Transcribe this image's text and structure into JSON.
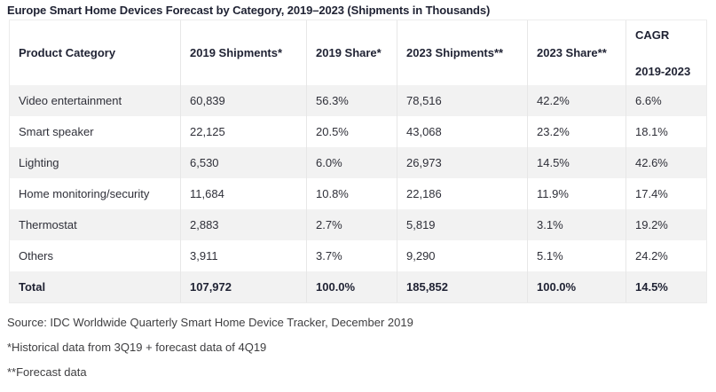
{
  "title": "Europe Smart Home Devices Forecast by Category, 2019–2023 (Shipments in Thousands)",
  "table": {
    "headers": {
      "product_category": "Product Category",
      "shipments_2019": "2019 Shipments*",
      "share_2019": "2019 Share*",
      "shipments_2023": "2023 Shipments**",
      "share_2023": "2023 Share**",
      "cagr_line1": "CAGR",
      "cagr_line2": "2019-2023"
    },
    "rows": [
      {
        "category": "Video entertainment",
        "shipments_2019": "60,839",
        "share_2019": "56.3%",
        "shipments_2023": "78,516",
        "share_2023": "42.2%",
        "cagr": "6.6%"
      },
      {
        "category": "Smart speaker",
        "shipments_2019": "22,125",
        "share_2019": "20.5%",
        "shipments_2023": "43,068",
        "share_2023": "23.2%",
        "cagr": "18.1%"
      },
      {
        "category": "Lighting",
        "shipments_2019": "6,530",
        "share_2019": "6.0%",
        "shipments_2023": "26,973",
        "share_2023": "14.5%",
        "cagr": "42.6%"
      },
      {
        "category": "Home monitoring/security",
        "shipments_2019": "11,684",
        "share_2019": "10.8%",
        "shipments_2023": "22,186",
        "share_2023": "11.9%",
        "cagr": "17.4%"
      },
      {
        "category": "Thermostat",
        "shipments_2019": "2,883",
        "share_2019": "2.7%",
        "shipments_2023": "5,819",
        "share_2023": "3.1%",
        "cagr": "19.2%"
      },
      {
        "category": "Others",
        "shipments_2019": "3,911",
        "share_2019": "3.7%",
        "shipments_2023": "9,290",
        "share_2023": "5.1%",
        "cagr": "24.2%"
      }
    ],
    "total": {
      "category": "Total",
      "shipments_2019": "107,972",
      "share_2019": "100.0%",
      "shipments_2023": "185,852",
      "share_2023": "100.0%",
      "cagr": "14.5%"
    }
  },
  "footnotes": [
    "Source: IDC Worldwide Quarterly Smart Home Device Tracker, December 2019",
    "*Historical data from 3Q19 + forecast data of 4Q19",
    "**Forecast data"
  ],
  "colors": {
    "stripe_gray": "#f2f2f2",
    "row_white": "#ffffff",
    "cell_border": "#e7e7e7",
    "heading_text": "#1f2233",
    "body_text": "#2f3039",
    "footnote_text": "#3e3e40"
  },
  "chart_data": {
    "type": "table",
    "title": "Europe Smart Home Devices Forecast by Category, 2019–2023 (Shipments in Thousands)",
    "units": "thousands of shipments",
    "columns": [
      "Product Category",
      "2019 Shipments*",
      "2019 Share*",
      "2023 Shipments**",
      "2023 Share**",
      "CAGR 2019-2023"
    ],
    "rows": [
      {
        "category": "Video entertainment",
        "shipments_2019": 60839,
        "share_2019_pct": 56.3,
        "shipments_2023": 78516,
        "share_2023_pct": 42.2,
        "cagr_pct": 6.6
      },
      {
        "category": "Smart speaker",
        "shipments_2019": 22125,
        "share_2019_pct": 20.5,
        "shipments_2023": 43068,
        "share_2023_pct": 23.2,
        "cagr_pct": 18.1
      },
      {
        "category": "Lighting",
        "shipments_2019": 6530,
        "share_2019_pct": 6.0,
        "shipments_2023": 26973,
        "share_2023_pct": 14.5,
        "cagr_pct": 42.6
      },
      {
        "category": "Home monitoring/security",
        "shipments_2019": 11684,
        "share_2019_pct": 10.8,
        "shipments_2023": 22186,
        "share_2023_pct": 11.9,
        "cagr_pct": 17.4
      },
      {
        "category": "Thermostat",
        "shipments_2019": 2883,
        "share_2019_pct": 2.7,
        "shipments_2023": 5819,
        "share_2023_pct": 3.1,
        "cagr_pct": 19.2
      },
      {
        "category": "Others",
        "shipments_2019": 3911,
        "share_2019_pct": 3.7,
        "shipments_2023": 9290,
        "share_2023_pct": 5.1,
        "cagr_pct": 24.2
      },
      {
        "category": "Total",
        "shipments_2019": 107972,
        "share_2019_pct": 100.0,
        "shipments_2023": 185852,
        "share_2023_pct": 100.0,
        "cagr_pct": 14.5
      }
    ],
    "source": "IDC Worldwide Quarterly Smart Home Device Tracker, December 2019",
    "footnotes": [
      "*Historical data from 3Q19 + forecast data of 4Q19",
      "**Forecast data"
    ]
  }
}
